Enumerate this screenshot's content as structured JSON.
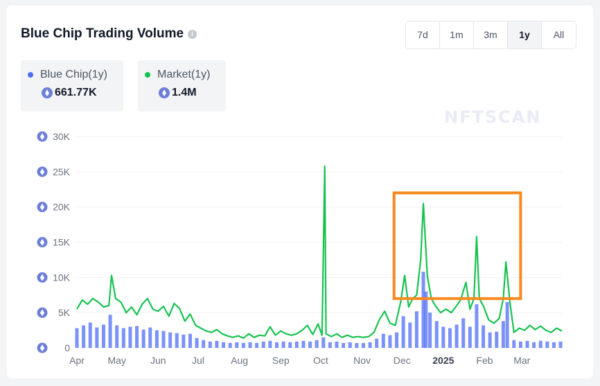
{
  "header": {
    "title": "Blue Chip Trading Volume",
    "info_icon": "info-icon"
  },
  "ranges": [
    {
      "label": "7d",
      "active": false
    },
    {
      "label": "1m",
      "active": false
    },
    {
      "label": "3m",
      "active": false
    },
    {
      "label": "1y",
      "active": true
    },
    {
      "label": "All",
      "active": false
    }
  ],
  "stats": [
    {
      "label": "Blue Chip(1y)",
      "value": "661.77K",
      "color": "#4f6ef7"
    },
    {
      "label": "Market(1y)",
      "value": "1.4M",
      "color": "#16c24f"
    }
  ],
  "watermark": "NFTSCAN",
  "colors": {
    "bluechip": "#4f6ef7",
    "market": "#16c24f",
    "highlight": "#f7891f",
    "grid": "#eef0f3"
  },
  "chart_data": {
    "type": "line",
    "ylim": [
      0,
      30000
    ],
    "yticks": [
      {
        "value": 0,
        "label": "0"
      },
      {
        "value": 5000,
        "label": "5K"
      },
      {
        "value": 10000,
        "label": "10K"
      },
      {
        "value": 15000,
        "label": "15K"
      },
      {
        "value": 20000,
        "label": "20K"
      },
      {
        "value": 25000,
        "label": "25K"
      },
      {
        "value": 30000,
        "label": "30K"
      }
    ],
    "x_range": [
      "2024-04-01",
      "2025-03-31"
    ],
    "xticks": [
      {
        "date": "2024-04-01",
        "label": "Apr",
        "bold": false
      },
      {
        "date": "2024-05-01",
        "label": "May",
        "bold": false
      },
      {
        "date": "2024-06-01",
        "label": "Jun",
        "bold": false
      },
      {
        "date": "2024-07-01",
        "label": "Jul",
        "bold": false
      },
      {
        "date": "2024-08-01",
        "label": "Aug",
        "bold": false
      },
      {
        "date": "2024-09-01",
        "label": "Sep",
        "bold": false
      },
      {
        "date": "2024-10-01",
        "label": "Oct",
        "bold": false
      },
      {
        "date": "2024-11-01",
        "label": "Nov",
        "bold": false
      },
      {
        "date": "2024-12-01",
        "label": "Dec",
        "bold": false
      },
      {
        "date": "2025-01-01",
        "label": "2025",
        "bold": true
      },
      {
        "date": "2025-02-01",
        "label": "Feb",
        "bold": false
      },
      {
        "date": "2025-03-01",
        "label": "Mar",
        "bold": false
      }
    ],
    "series": [
      {
        "name": "Market(1y)",
        "kind": "line",
        "points": [
          [
            "2024-04-01",
            5500
          ],
          [
            "2024-04-05",
            6800
          ],
          [
            "2024-04-09",
            6200
          ],
          [
            "2024-04-13",
            7000
          ],
          [
            "2024-04-17",
            6500
          ],
          [
            "2024-04-21",
            5800
          ],
          [
            "2024-04-25",
            6000
          ],
          [
            "2024-04-27",
            10300
          ],
          [
            "2024-04-30",
            7000
          ],
          [
            "2024-05-04",
            6500
          ],
          [
            "2024-05-08",
            5000
          ],
          [
            "2024-05-12",
            5800
          ],
          [
            "2024-05-16",
            4700
          ],
          [
            "2024-05-20",
            6200
          ],
          [
            "2024-05-24",
            7000
          ],
          [
            "2024-05-28",
            5500
          ],
          [
            "2024-06-01",
            5200
          ],
          [
            "2024-06-05",
            5900
          ],
          [
            "2024-06-09",
            4500
          ],
          [
            "2024-06-13",
            6300
          ],
          [
            "2024-06-17",
            5600
          ],
          [
            "2024-06-21",
            3800
          ],
          [
            "2024-06-25",
            4800
          ],
          [
            "2024-06-29",
            3200
          ],
          [
            "2024-07-03",
            2800
          ],
          [
            "2024-07-07",
            2400
          ],
          [
            "2024-07-11",
            2200
          ],
          [
            "2024-07-15",
            2600
          ],
          [
            "2024-07-19",
            2000
          ],
          [
            "2024-07-23",
            1700
          ],
          [
            "2024-07-27",
            1500
          ],
          [
            "2024-07-31",
            1700
          ],
          [
            "2024-08-04",
            1400
          ],
          [
            "2024-08-08",
            2000
          ],
          [
            "2024-08-12",
            1500
          ],
          [
            "2024-08-16",
            1800
          ],
          [
            "2024-08-20",
            1700
          ],
          [
            "2024-08-24",
            3000
          ],
          [
            "2024-08-28",
            1800
          ],
          [
            "2024-09-01",
            2400
          ],
          [
            "2024-09-05",
            2000
          ],
          [
            "2024-09-09",
            1800
          ],
          [
            "2024-09-13",
            2000
          ],
          [
            "2024-09-17",
            2500
          ],
          [
            "2024-09-21",
            3200
          ],
          [
            "2024-09-25",
            1900
          ],
          [
            "2024-09-29",
            3400
          ],
          [
            "2024-10-02",
            1800
          ],
          [
            "2024-10-04",
            25800
          ],
          [
            "2024-10-05",
            2000
          ],
          [
            "2024-10-09",
            1600
          ],
          [
            "2024-10-13",
            2000
          ],
          [
            "2024-10-17",
            1500
          ],
          [
            "2024-10-21",
            1800
          ],
          [
            "2024-10-25",
            1500
          ],
          [
            "2024-10-29",
            1600
          ],
          [
            "2024-11-02",
            1500
          ],
          [
            "2024-11-06",
            1600
          ],
          [
            "2024-11-10",
            2200
          ],
          [
            "2024-11-14",
            4000
          ],
          [
            "2024-11-18",
            5200
          ],
          [
            "2024-11-22",
            3500
          ],
          [
            "2024-11-26",
            3200
          ],
          [
            "2024-11-30",
            6500
          ],
          [
            "2024-12-03",
            10300
          ],
          [
            "2024-12-06",
            5800
          ],
          [
            "2024-12-09",
            7000
          ],
          [
            "2024-12-12",
            7500
          ],
          [
            "2024-12-15",
            12500
          ],
          [
            "2024-12-17",
            20500
          ],
          [
            "2024-12-20",
            10200
          ],
          [
            "2024-12-23",
            7000
          ],
          [
            "2024-12-26",
            6000
          ],
          [
            "2024-12-30",
            5000
          ],
          [
            "2025-01-03",
            5500
          ],
          [
            "2025-01-07",
            5000
          ],
          [
            "2025-01-11",
            6000
          ],
          [
            "2025-01-14",
            6800
          ],
          [
            "2025-01-18",
            9300
          ],
          [
            "2025-01-21",
            5500
          ],
          [
            "2025-01-24",
            7000
          ],
          [
            "2025-01-26",
            15800
          ],
          [
            "2025-01-28",
            7000
          ],
          [
            "2025-01-31",
            6000
          ],
          [
            "2025-02-04",
            4000
          ],
          [
            "2025-02-08",
            3500
          ],
          [
            "2025-02-12",
            4200
          ],
          [
            "2025-02-15",
            7000
          ],
          [
            "2025-02-17",
            12200
          ],
          [
            "2025-02-20",
            6500
          ],
          [
            "2025-02-23",
            2200
          ],
          [
            "2025-02-27",
            2800
          ],
          [
            "2025-03-03",
            2500
          ],
          [
            "2025-03-07",
            3200
          ],
          [
            "2025-03-11",
            2600
          ],
          [
            "2025-03-15",
            3100
          ],
          [
            "2025-03-19",
            2500
          ],
          [
            "2025-03-23",
            2200
          ],
          [
            "2025-03-27",
            2800
          ],
          [
            "2025-03-31",
            2400
          ]
        ]
      },
      {
        "name": "Blue Chip(1y)",
        "kind": "bar",
        "points": [
          [
            "2024-04-01",
            2800
          ],
          [
            "2024-04-06",
            3200
          ],
          [
            "2024-04-11",
            3600
          ],
          [
            "2024-04-16",
            2900
          ],
          [
            "2024-04-21",
            3300
          ],
          [
            "2024-04-26",
            4700
          ],
          [
            "2024-05-01",
            3200
          ],
          [
            "2024-05-06",
            2800
          ],
          [
            "2024-05-11",
            3000
          ],
          [
            "2024-05-16",
            3100
          ],
          [
            "2024-05-21",
            2600
          ],
          [
            "2024-05-26",
            2900
          ],
          [
            "2024-05-31",
            2500
          ],
          [
            "2024-06-05",
            2400
          ],
          [
            "2024-06-10",
            2200
          ],
          [
            "2024-06-15",
            2100
          ],
          [
            "2024-06-20",
            1900
          ],
          [
            "2024-06-25",
            2000
          ],
          [
            "2024-06-30",
            1400
          ],
          [
            "2024-07-05",
            1100
          ],
          [
            "2024-07-10",
            900
          ],
          [
            "2024-07-15",
            1000
          ],
          [
            "2024-07-20",
            800
          ],
          [
            "2024-07-25",
            700
          ],
          [
            "2024-07-30",
            800
          ],
          [
            "2024-08-04",
            700
          ],
          [
            "2024-08-09",
            800
          ],
          [
            "2024-08-14",
            700
          ],
          [
            "2024-08-19",
            900
          ],
          [
            "2024-08-24",
            1000
          ],
          [
            "2024-08-29",
            800
          ],
          [
            "2024-09-03",
            900
          ],
          [
            "2024-09-08",
            800
          ],
          [
            "2024-09-13",
            900
          ],
          [
            "2024-09-18",
            1000
          ],
          [
            "2024-09-23",
            900
          ],
          [
            "2024-09-28",
            1100
          ],
          [
            "2024-10-03",
            1500
          ],
          [
            "2024-10-08",
            800
          ],
          [
            "2024-10-13",
            900
          ],
          [
            "2024-10-18",
            700
          ],
          [
            "2024-10-23",
            800
          ],
          [
            "2024-10-28",
            700
          ],
          [
            "2024-11-02",
            700
          ],
          [
            "2024-11-07",
            800
          ],
          [
            "2024-11-12",
            1300
          ],
          [
            "2024-11-17",
            2000
          ],
          [
            "2024-11-22",
            1800
          ],
          [
            "2024-11-27",
            2200
          ],
          [
            "2024-12-02",
            4500
          ],
          [
            "2024-12-07",
            3600
          ],
          [
            "2024-12-12",
            5200
          ],
          [
            "2024-12-17",
            10800
          ],
          [
            "2024-12-19",
            8000
          ],
          [
            "2024-12-22",
            5000
          ],
          [
            "2024-12-27",
            3800
          ],
          [
            "2025-01-01",
            3000
          ],
          [
            "2025-01-06",
            2800
          ],
          [
            "2025-01-11",
            3300
          ],
          [
            "2025-01-16",
            4200
          ],
          [
            "2025-01-21",
            3000
          ],
          [
            "2025-01-26",
            6200
          ],
          [
            "2025-01-31",
            3200
          ],
          [
            "2025-02-05",
            2200
          ],
          [
            "2025-02-10",
            2300
          ],
          [
            "2025-02-15",
            3800
          ],
          [
            "2025-02-18",
            6500
          ],
          [
            "2025-02-23",
            1100
          ],
          [
            "2025-02-28",
            900
          ],
          [
            "2025-03-05",
            1000
          ],
          [
            "2025-03-10",
            800
          ],
          [
            "2025-03-15",
            1000
          ],
          [
            "2025-03-20",
            900
          ],
          [
            "2025-03-25",
            800
          ],
          [
            "2025-03-30",
            900
          ]
        ]
      }
    ],
    "annotations": [
      {
        "type": "rect",
        "x0": "2024-11-25",
        "x1": "2025-02-28",
        "y0": 7000,
        "y1": 22000
      }
    ]
  }
}
